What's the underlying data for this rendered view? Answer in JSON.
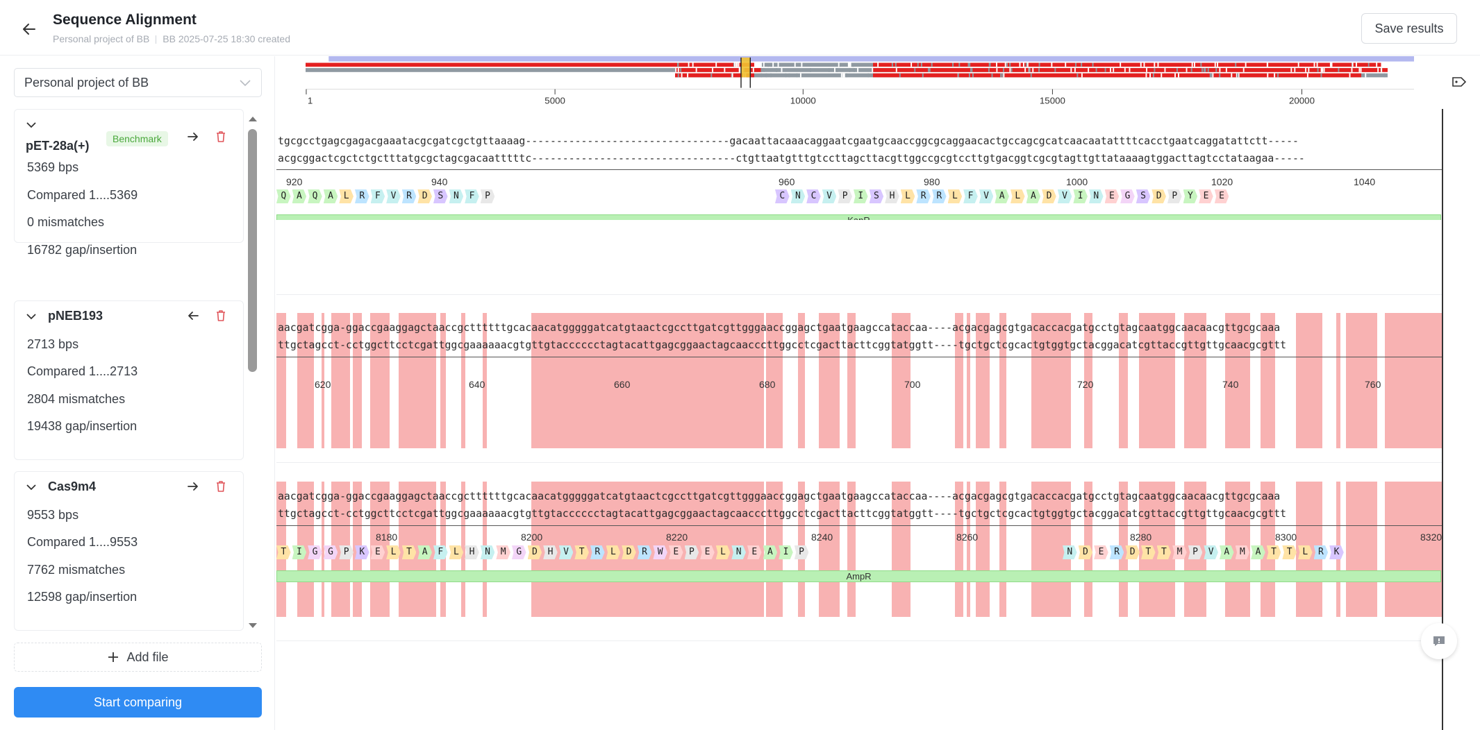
{
  "header": {
    "title": "Sequence Alignment",
    "project": "Personal project of BB",
    "meta": "BB 2025-07-25 18:30 created",
    "save_label": "Save results"
  },
  "sidebar": {
    "project_select": "Personal project of BB",
    "add_file_label": "Add file",
    "start_label": "Start comparing",
    "files": [
      {
        "name": "pET-28a(+)",
        "badge": "Benchmark",
        "length": "5369 bps",
        "compared": "Compared 1....5369",
        "mismatches": "0 mismatches",
        "gaps": "16782 gap/insertion"
      },
      {
        "name": "pNEB193",
        "length": "2713 bps",
        "compared": "Compared 1....2713",
        "mismatches": "2804 mismatches",
        "gaps": "19438 gap/insertion"
      },
      {
        "name": "Cas9m4",
        "length": "9553 bps",
        "compared": "Compared 1....9553",
        "mismatches": "7762 mismatches",
        "gaps": "12598 gap/insertion"
      }
    ]
  },
  "overview": {
    "ticks": [
      "1",
      "5000",
      "10000",
      "15000",
      "20000"
    ]
  },
  "panels": [
    {
      "seq_top": "tgcgcctgagcgagacgaaatacgcgatcgctgttaaaag---------------------------------gacaattacaaacaggaatcgaatgcaaccggcgcaggaacactgccagcgcatcaacaatattttcacctgaatcaggatattctt-----",
      "seq_bottom": "acgcggactcgctctgctttatgcgctagcgacaatttttc---------------------------------ctgttaatgtttgtccttagcttacgttggccgcgtccttgtgacggtcgcgtagttgttataaaagtggacttagtcctataagaa-----",
      "positions": [
        "920",
        "940",
        "960",
        "980",
        "1000",
        "1020",
        "1040"
      ],
      "aa_left": [
        "Q",
        "A",
        "Q",
        "A",
        "L",
        "R",
        "F",
        "V",
        "R",
        "D",
        "S",
        "N",
        "F",
        "P"
      ],
      "aa_right": [
        "C",
        "N",
        "C",
        "V",
        "P",
        "I",
        "S",
        "H",
        "L",
        "R",
        "R",
        "L",
        "F",
        "V",
        "A",
        "L",
        "A",
        "D",
        "V",
        "I",
        "N",
        "E",
        "G",
        "S",
        "D",
        "P",
        "Y",
        "E",
        "E"
      ],
      "feature": "KanR"
    },
    {
      "seq_top": "aacgatcgga-ggaccgaaggagctaaccgcttttttgcacaacatgggggatcatgtaactcgccttgatcgttgggaaccggagctgaatgaagccataccaa----acgacgagcgtgacaccacgatgcctgtagcaatggcaacaacgttgcgcaaa",
      "seq_bottom": "ttgctagcct-cctggcttcctcgattggcgaaaaaacgtgttgtacccccctagtacattgagcggaactagcaacccttggcctcgacttacttcggtatggtt----tgctgctcgcactgtggtgctacggacatcgttaccgttgttgcaacgcgttt",
      "positions": [
        "620",
        "640",
        "660",
        "680",
        "700",
        "720",
        "740",
        "760"
      ]
    },
    {
      "seq_top": "aacgatcgga-ggaccgaaggagctaaccgcttttttgcacaacatgggggatcatgtaactcgccttgatcgttgggaaccggagctgaatgaagccataccaa----acgacgagcgtgacaccacgatgcctgtagcaatggcaacaacgttgcgcaaa",
      "seq_bottom": "ttgctagcct-cctggcttcctcgattggcgaaaaaacgtgttgtacccccctagtacattgagcggaactagcaacccttggcctcgacttacttcggtatggtt----tgctgctcgcactgtggtgctacggacatcgttaccgttgttgcaacgcgttt",
      "positions": [
        "8180",
        "8200",
        "8220",
        "8240",
        "8260",
        "8280",
        "8300",
        "8320"
      ],
      "aa_left": [
        "T",
        "I",
        "G",
        "G",
        "P",
        "K",
        "E",
        "L",
        "T",
        "A",
        "F",
        "L",
        "H",
        "N",
        "M",
        "G",
        "D",
        "H",
        "V",
        "T",
        "R",
        "L",
        "D",
        "R",
        "W",
        "E",
        "P",
        "E",
        "L",
        "N",
        "E",
        "A",
        "I",
        "P"
      ],
      "aa_right": [
        "N",
        "D",
        "E",
        "R",
        "D",
        "T",
        "T",
        "M",
        "P",
        "V",
        "A",
        "M",
        "A",
        "T",
        "T",
        "L",
        "R",
        "K"
      ],
      "feature": "AmpR"
    }
  ]
}
